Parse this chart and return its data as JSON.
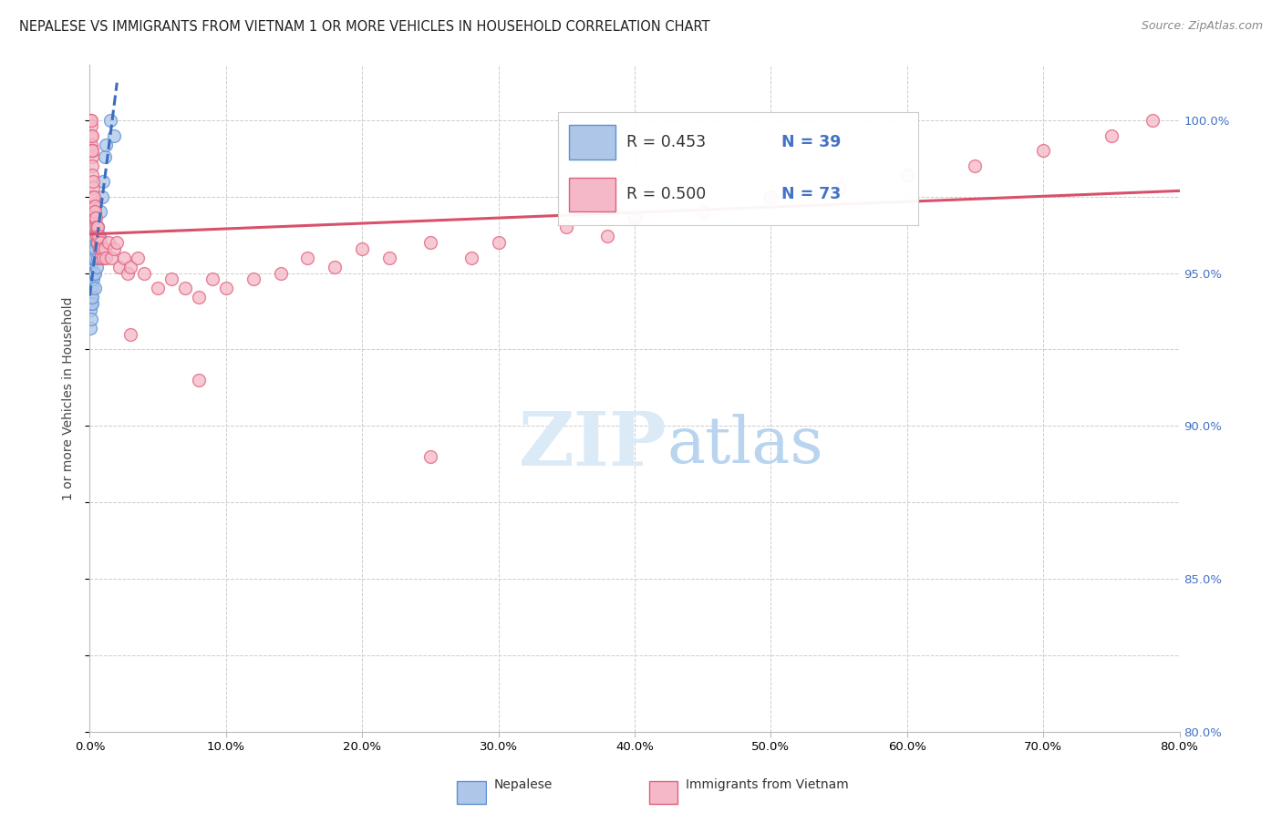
{
  "title": "NEPALESE VS IMMIGRANTS FROM VIETNAM 1 OR MORE VEHICLES IN HOUSEHOLD CORRELATION CHART",
  "source": "Source: ZipAtlas.com",
  "ylabel": "1 or more Vehicles in Household",
  "legend_blue_r": "R = 0.453",
  "legend_blue_n": "N = 39",
  "legend_pink_r": "R = 0.500",
  "legend_pink_n": "N = 73",
  "legend_label_blue": "Nepalese",
  "legend_label_pink": "Immigrants from Vietnam",
  "blue_fill": "#aec6e8",
  "blue_edge": "#5b8fd4",
  "pink_fill": "#f5b8c8",
  "pink_edge": "#e0607a",
  "blue_line_color": "#3a6dbf",
  "pink_line_color": "#d9506a",
  "r_value_color": "#4472c4",
  "n_value_color": "#4472c4",
  "watermark_color": "#daeaf7",
  "xmin": 0.0,
  "xmax": 80.0,
  "ymin": 80.0,
  "ymax": 101.8,
  "yticks": [
    80.0,
    85.0,
    90.0,
    95.0,
    100.0
  ],
  "ytick_labels": [
    "80.0%",
    "85.0%",
    "90.0%",
    "95.0%",
    "100.0%"
  ],
  "blue_scatter_x": [
    0.05,
    0.05,
    0.05,
    0.08,
    0.08,
    0.1,
    0.1,
    0.1,
    0.12,
    0.12,
    0.15,
    0.15,
    0.15,
    0.18,
    0.18,
    0.2,
    0.2,
    0.2,
    0.22,
    0.25,
    0.25,
    0.3,
    0.3,
    0.35,
    0.35,
    0.4,
    0.4,
    0.5,
    0.5,
    0.6,
    0.6,
    0.7,
    0.8,
    0.9,
    1.0,
    1.1,
    1.2,
    1.5,
    1.8
  ],
  "blue_scatter_y": [
    94.5,
    93.8,
    93.2,
    95.2,
    94.0,
    95.5,
    94.8,
    93.5,
    95.0,
    94.2,
    96.2,
    95.0,
    94.0,
    95.8,
    94.5,
    96.5,
    95.5,
    94.2,
    95.0,
    96.0,
    94.8,
    96.2,
    95.0,
    95.5,
    94.5,
    95.8,
    95.0,
    96.0,
    95.2,
    96.5,
    95.5,
    96.2,
    97.0,
    97.5,
    98.0,
    98.8,
    99.2,
    100.0,
    99.5
  ],
  "pink_scatter_x": [
    0.05,
    0.08,
    0.1,
    0.12,
    0.12,
    0.15,
    0.15,
    0.18,
    0.18,
    0.2,
    0.2,
    0.22,
    0.25,
    0.25,
    0.28,
    0.3,
    0.3,
    0.35,
    0.35,
    0.4,
    0.4,
    0.45,
    0.5,
    0.5,
    0.55,
    0.6,
    0.65,
    0.7,
    0.75,
    0.8,
    0.9,
    1.0,
    1.1,
    1.2,
    1.4,
    1.6,
    1.8,
    2.0,
    2.2,
    2.5,
    2.8,
    3.0,
    3.5,
    4.0,
    5.0,
    6.0,
    7.0,
    8.0,
    9.0,
    10.0,
    12.0,
    14.0,
    16.0,
    18.0,
    20.0,
    22.0,
    25.0,
    28.0,
    30.0,
    35.0,
    38.0,
    40.0,
    45.0,
    50.0,
    55.0,
    60.0,
    65.0,
    70.0,
    75.0,
    78.0,
    3.0,
    8.0,
    25.0
  ],
  "pink_scatter_y": [
    100.0,
    99.8,
    100.0,
    99.5,
    99.2,
    98.8,
    99.5,
    98.5,
    99.0,
    98.2,
    99.0,
    97.8,
    98.0,
    97.5,
    97.2,
    97.5,
    97.0,
    97.2,
    96.8,
    97.0,
    96.5,
    96.8,
    96.5,
    96.2,
    96.5,
    96.0,
    96.2,
    95.8,
    96.0,
    95.5,
    95.8,
    95.5,
    95.8,
    95.5,
    96.0,
    95.5,
    95.8,
    96.0,
    95.2,
    95.5,
    95.0,
    95.2,
    95.5,
    95.0,
    94.5,
    94.8,
    94.5,
    94.2,
    94.8,
    94.5,
    94.8,
    95.0,
    95.5,
    95.2,
    95.8,
    95.5,
    96.0,
    95.5,
    96.0,
    96.5,
    96.2,
    96.8,
    97.0,
    97.5,
    97.8,
    98.2,
    98.5,
    99.0,
    99.5,
    100.0,
    93.0,
    91.5,
    89.0
  ],
  "title_fontsize": 10.5,
  "source_fontsize": 9,
  "ylabel_fontsize": 10,
  "tick_fontsize": 9.5,
  "legend_fontsize": 12.5,
  "watermark_fontsize": 60,
  "scatter_size": 100
}
